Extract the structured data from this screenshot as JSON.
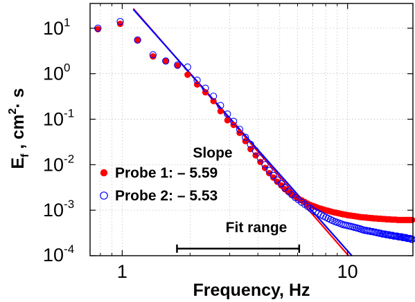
{
  "chart_data": {
    "type": "scatter",
    "x_scale": "log",
    "y_scale": "log",
    "xlim": [
      0.72,
      19.5
    ],
    "ylim": [
      0.0001,
      35
    ],
    "grid": true,
    "xlabel": "Frequency, Hz",
    "ylabel": {
      "base": "E",
      "sub": "f",
      "mid": " , cm",
      "sup": "2",
      "tail": "· s"
    },
    "x_ticks": [
      {
        "value": 1,
        "label": "1"
      },
      {
        "value": 10,
        "label": "10"
      }
    ],
    "y_ticks": [
      {
        "value": 10,
        "base": "10",
        "exp": "1"
      },
      {
        "value": 1,
        "base": "10",
        "exp": "0"
      },
      {
        "value": 0.1,
        "base": "10",
        "exp": "-1"
      },
      {
        "value": 0.01,
        "base": "10",
        "exp": "-2"
      },
      {
        "value": 0.001,
        "base": "10",
        "exp": "-3"
      },
      {
        "value": 0.0001,
        "base": "10",
        "exp": "-4"
      }
    ],
    "legend": {
      "title": "Slope",
      "placement": "center-left",
      "entries": [
        "Probe 1: – 5.59",
        "Probe 2: – 5.53"
      ]
    },
    "annotation": {
      "label": "Fit range",
      "x_range": [
        1.75,
        6.1
      ],
      "y": 0.000143
    },
    "series": [
      {
        "name": "Probe 1",
        "marker": "filled-circle",
        "color": "#ff0000",
        "points": [
          [
            0.78,
            9.5
          ],
          [
            0.98,
            12.5
          ],
          [
            1.17,
            5.4
          ],
          [
            1.37,
            2.4
          ],
          [
            1.56,
            1.9
          ],
          [
            1.76,
            1.5
          ],
          [
            1.95,
            0.95
          ],
          [
            2.15,
            0.58
          ],
          [
            2.34,
            0.39
          ],
          [
            2.54,
            0.25
          ],
          [
            2.73,
            0.15
          ],
          [
            2.93,
            0.095
          ],
          [
            3.12,
            0.075
          ],
          [
            3.32,
            0.05
          ],
          [
            3.52,
            0.033
          ],
          [
            3.71,
            0.022
          ],
          [
            3.91,
            0.016
          ],
          [
            4.1,
            0.0115
          ],
          [
            4.3,
            0.0085
          ],
          [
            4.49,
            0.0065
          ],
          [
            4.69,
            0.0052
          ],
          [
            4.88,
            0.0042
          ],
          [
            5.08,
            0.0035
          ],
          [
            5.27,
            0.0029
          ],
          [
            5.47,
            0.0025
          ],
          [
            5.66,
            0.0022
          ],
          [
            5.86,
            0.002
          ],
          [
            6.05,
            0.0018
          ],
          [
            6.25,
            0.00165
          ],
          [
            6.45,
            0.00152
          ],
          [
            6.64,
            0.0014
          ],
          [
            6.84,
            0.0013
          ],
          [
            7.03,
            0.00124
          ],
          [
            7.23,
            0.00118
          ],
          [
            7.42,
            0.00112
          ],
          [
            7.62,
            0.00108
          ],
          [
            7.81,
            0.00104
          ],
          [
            8.01,
            0.001
          ],
          [
            8.2,
            0.00097
          ],
          [
            8.4,
            0.00094
          ],
          [
            8.59,
            0.00091
          ],
          [
            8.79,
            0.00089
          ],
          [
            8.98,
            0.00087
          ],
          [
            9.18,
            0.00085
          ],
          [
            9.38,
            0.00083
          ],
          [
            9.57,
            0.00081
          ],
          [
            9.77,
            0.0008
          ],
          [
            9.96,
            0.00078
          ],
          [
            10.16,
            0.00077
          ],
          [
            10.35,
            0.00076
          ],
          [
            10.55,
            0.00075
          ],
          [
            10.74,
            0.00074
          ],
          [
            10.94,
            0.00073
          ],
          [
            11.13,
            0.00072
          ],
          [
            11.33,
            0.00071
          ],
          [
            11.52,
            0.0007
          ],
          [
            11.72,
            0.0007
          ],
          [
            11.91,
            0.00069
          ],
          [
            12.11,
            0.00069
          ],
          [
            12.3,
            0.00068
          ],
          [
            12.5,
            0.00068
          ],
          [
            12.7,
            0.00067
          ],
          [
            12.89,
            0.00067
          ],
          [
            13.09,
            0.00066
          ],
          [
            13.28,
            0.00066
          ],
          [
            13.48,
            0.00066
          ],
          [
            13.67,
            0.00065
          ],
          [
            13.87,
            0.00065
          ],
          [
            14.06,
            0.00065
          ],
          [
            14.26,
            0.00064
          ],
          [
            14.45,
            0.00064
          ],
          [
            14.65,
            0.00064
          ],
          [
            14.84,
            0.00063
          ],
          [
            15.04,
            0.00063
          ],
          [
            15.23,
            0.00063
          ],
          [
            15.43,
            0.00063
          ],
          [
            15.63,
            0.00062
          ],
          [
            15.82,
            0.00062
          ],
          [
            16.02,
            0.00062
          ],
          [
            16.21,
            0.00062
          ],
          [
            16.41,
            0.00062
          ],
          [
            16.6,
            0.00061
          ],
          [
            16.8,
            0.00061
          ],
          [
            16.99,
            0.00061
          ],
          [
            17.19,
            0.00061
          ],
          [
            17.38,
            0.00061
          ],
          [
            17.58,
            0.00061
          ],
          [
            17.77,
            0.00061
          ],
          [
            17.97,
            0.00061
          ],
          [
            18.16,
            0.00061
          ],
          [
            18.36,
            0.00061
          ],
          [
            18.55,
            0.00061
          ],
          [
            18.75,
            0.00061
          ],
          [
            18.95,
            0.00061
          ],
          [
            19.14,
            0.00061
          ],
          [
            19.34,
            0.00061
          ]
        ]
      },
      {
        "name": "Probe 2",
        "marker": "open-circle",
        "color": "#0000ff",
        "points": [
          [
            0.78,
            10
          ],
          [
            0.98,
            14
          ],
          [
            1.17,
            5.5
          ],
          [
            1.37,
            2.6
          ],
          [
            1.56,
            1.9
          ],
          [
            1.76,
            1.55
          ],
          [
            1.95,
            1.4
          ],
          [
            2.15,
            0.72
          ],
          [
            2.34,
            0.48
          ],
          [
            2.54,
            0.32
          ],
          [
            2.73,
            0.2
          ],
          [
            2.93,
            0.13
          ],
          [
            3.12,
            0.09
          ],
          [
            3.32,
            0.06
          ],
          [
            3.52,
            0.04
          ],
          [
            3.71,
            0.028
          ],
          [
            3.91,
            0.02
          ],
          [
            4.1,
            0.014
          ],
          [
            4.3,
            0.01
          ],
          [
            4.49,
            0.0075
          ],
          [
            4.69,
            0.0058
          ],
          [
            4.88,
            0.0046
          ],
          [
            5.08,
            0.0038
          ],
          [
            5.27,
            0.0031
          ],
          [
            5.47,
            0.0026
          ],
          [
            5.66,
            0.0022
          ],
          [
            5.86,
            0.0019
          ],
          [
            6.05,
            0.0017
          ],
          [
            6.25,
            0.0015
          ],
          [
            6.45,
            0.00135
          ],
          [
            6.64,
            0.00122
          ],
          [
            6.84,
            0.0011
          ],
          [
            7.03,
            0.001
          ],
          [
            7.23,
            0.00092
          ],
          [
            7.42,
            0.00085
          ],
          [
            7.62,
            0.00079
          ],
          [
            7.81,
            0.00074
          ],
          [
            8.01,
            0.0007
          ],
          [
            8.2,
            0.00066
          ],
          [
            8.4,
            0.00062
          ],
          [
            8.59,
            0.00059
          ],
          [
            8.79,
            0.00056
          ],
          [
            8.98,
            0.00054
          ],
          [
            9.18,
            0.00052
          ],
          [
            9.38,
            0.0005
          ],
          [
            9.57,
            0.00048
          ],
          [
            9.77,
            0.00047
          ],
          [
            9.96,
            0.00046
          ],
          [
            10.16,
            0.00045
          ],
          [
            10.35,
            0.00044
          ],
          [
            10.55,
            0.00043
          ],
          [
            10.74,
            0.00042
          ],
          [
            10.94,
            0.00041
          ],
          [
            11.13,
            0.0004
          ],
          [
            11.33,
            0.00039
          ],
          [
            11.52,
            0.00038
          ],
          [
            11.72,
            0.00037
          ],
          [
            11.91,
            0.00036
          ],
          [
            12.11,
            0.00036
          ],
          [
            12.3,
            0.00035
          ],
          [
            12.5,
            0.00035
          ],
          [
            12.7,
            0.00034
          ],
          [
            12.89,
            0.00034
          ],
          [
            13.09,
            0.00033
          ],
          [
            13.28,
            0.00033
          ],
          [
            13.48,
            0.00032
          ],
          [
            13.67,
            0.00032
          ],
          [
            13.87,
            0.00031
          ],
          [
            14.06,
            0.00031
          ],
          [
            14.26,
            0.0003
          ],
          [
            14.45,
            0.0003
          ],
          [
            14.65,
            0.0003
          ],
          [
            14.84,
            0.00029
          ],
          [
            15.04,
            0.00029
          ],
          [
            15.23,
            0.00029
          ],
          [
            15.43,
            0.00028
          ],
          [
            15.63,
            0.00028
          ],
          [
            15.82,
            0.00028
          ],
          [
            16.02,
            0.00027
          ],
          [
            16.21,
            0.00027
          ],
          [
            16.41,
            0.00027
          ],
          [
            16.6,
            0.00027
          ],
          [
            16.8,
            0.00026
          ],
          [
            16.99,
            0.00026
          ],
          [
            17.19,
            0.00026
          ],
          [
            17.38,
            0.00026
          ],
          [
            17.58,
            0.00025
          ],
          [
            17.77,
            0.00025
          ],
          [
            17.97,
            0.00025
          ],
          [
            18.16,
            0.00025
          ],
          [
            18.36,
            0.00024
          ],
          [
            18.55,
            0.00024
          ],
          [
            18.75,
            0.00024
          ],
          [
            18.95,
            0.00024
          ],
          [
            19.14,
            0.00023
          ],
          [
            19.34,
            0.00023
          ]
        ]
      }
    ],
    "fit_lines": [
      {
        "name": "Probe 1 fit",
        "color": "#ff0000",
        "slope": -5.59,
        "x": [
          1.12,
          10.1
        ],
        "y": [
          27,
          0.0001
        ]
      },
      {
        "name": "Probe 2 fit",
        "color": "#0000ff",
        "slope": -5.53,
        "x": [
          1.12,
          10.45
        ],
        "y": [
          26,
          0.0001
        ]
      }
    ]
  }
}
